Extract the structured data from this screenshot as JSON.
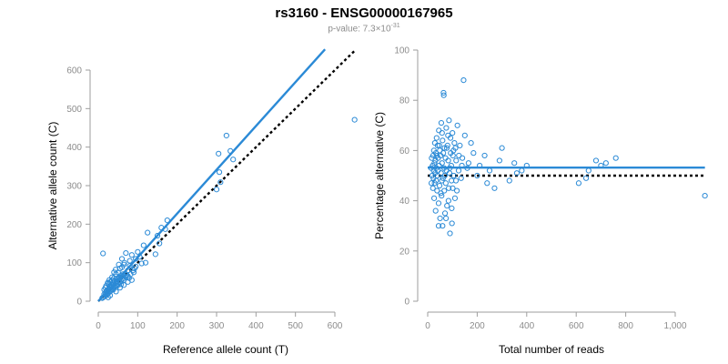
{
  "header": {
    "title": "rs3160 - ENSG00000167965",
    "pvalue_prefix": "p-value: 7.3×10",
    "pvalue_exponent": "-31"
  },
  "colors": {
    "points": "#2b8ad6",
    "fit": "#2b8ad6",
    "reference": "#000000"
  },
  "chart_data": [
    {
      "type": "scatter",
      "name": "allele-counts",
      "xlabel": "Reference allele count (T)",
      "ylabel": "Alternative allele count (C)",
      "xlim": [
        0,
        650
      ],
      "ylim": [
        0,
        650
      ],
      "xticks": [
        0,
        100,
        200,
        300,
        400,
        500,
        600
      ],
      "xtick_labels": [
        "0",
        "100",
        "200",
        "300",
        "400",
        "500",
        "600"
      ],
      "yticks": [
        0,
        100,
        200,
        300,
        400,
        500,
        600
      ],
      "ytick_labels": [
        "0",
        "100",
        "200",
        "300",
        "400",
        "500",
        "600"
      ],
      "fit_line": {
        "x": [
          0,
          575
        ],
        "y": [
          0,
          654
        ]
      },
      "reference_line": {
        "x": [
          0,
          650
        ],
        "y": [
          0,
          650
        ]
      },
      "points": [
        [
          650,
          471
        ],
        [
          325,
          430
        ],
        [
          335,
          390
        ],
        [
          305,
          383
        ],
        [
          342,
          368
        ],
        [
          307,
          335
        ],
        [
          310,
          309
        ],
        [
          300,
          290
        ],
        [
          175,
          210
        ],
        [
          160,
          191
        ],
        [
          170,
          187
        ],
        [
          125,
          178
        ],
        [
          150,
          170
        ],
        [
          155,
          150
        ],
        [
          115,
          145
        ],
        [
          145,
          122
        ],
        [
          100,
          128
        ],
        [
          120,
          100
        ],
        [
          105,
          115
        ],
        [
          95,
          110
        ],
        [
          80,
          92
        ],
        [
          85,
          120
        ],
        [
          70,
          125
        ],
        [
          60,
          110
        ],
        [
          90,
          75
        ],
        [
          75,
          80
        ],
        [
          65,
          95
        ],
        [
          55,
          85
        ],
        [
          50,
          75
        ],
        [
          45,
          70
        ],
        [
          40,
          60
        ],
        [
          35,
          55
        ],
        [
          30,
          50
        ],
        [
          25,
          45
        ],
        [
          20,
          40
        ],
        [
          15,
          30
        ],
        [
          12,
          124
        ],
        [
          18,
          35
        ],
        [
          22,
          28
        ],
        [
          28,
          38
        ],
        [
          33,
          42
        ],
        [
          38,
          48
        ],
        [
          42,
          52
        ],
        [
          48,
          58
        ],
        [
          52,
          62
        ],
        [
          58,
          66
        ],
        [
          62,
          70
        ],
        [
          68,
          72
        ],
        [
          72,
          68
        ],
        [
          78,
          60
        ],
        [
          82,
          70
        ],
        [
          88,
          80
        ],
        [
          92,
          85
        ],
        [
          55,
          50
        ],
        [
          50,
          45
        ],
        [
          45,
          40
        ],
        [
          40,
          35
        ],
        [
          35,
          30
        ],
        [
          30,
          25
        ],
        [
          25,
          20
        ],
        [
          20,
          15
        ],
        [
          15,
          12
        ],
        [
          12,
          10
        ],
        [
          10,
          8
        ],
        [
          18,
          22
        ],
        [
          22,
          18
        ],
        [
          28,
          32
        ],
        [
          32,
          28
        ],
        [
          38,
          30
        ],
        [
          42,
          38
        ],
        [
          48,
          40
        ],
        [
          52,
          48
        ],
        [
          58,
          52
        ],
        [
          62,
          58
        ],
        [
          65,
          55
        ],
        [
          70,
          62
        ],
        [
          75,
          65
        ],
        [
          35,
          62
        ],
        [
          28,
          55
        ],
        [
          24,
          48
        ],
        [
          40,
          75
        ],
        [
          44,
          82
        ],
        [
          60,
          88
        ],
        [
          52,
          95
        ],
        [
          66,
          100
        ],
        [
          80,
          105
        ],
        [
          95,
          90
        ],
        [
          110,
          98
        ],
        [
          25,
          10
        ],
        [
          30,
          15
        ],
        [
          45,
          25
        ],
        [
          55,
          35
        ],
        [
          65,
          42
        ],
        [
          75,
          50
        ],
        [
          85,
          55
        ],
        [
          15,
          18
        ],
        [
          20,
          25
        ],
        [
          26,
          30
        ],
        [
          34,
          36
        ],
        [
          46,
          52
        ],
        [
          54,
          60
        ],
        [
          64,
          66
        ],
        [
          38,
          44
        ],
        [
          32,
          38
        ],
        [
          58,
          44
        ]
      ]
    },
    {
      "type": "scatter",
      "name": "percentage-alternative",
      "xlabel": "Total number of reads",
      "ylabel": "Percentage alternative (C)",
      "xlim": [
        0,
        1120
      ],
      "ylim": [
        0,
        100
      ],
      "xticks": [
        0,
        200,
        400,
        600,
        800,
        1000
      ],
      "xtick_labels": [
        "0",
        "200",
        "400",
        "600",
        "800",
        "1,000"
      ],
      "yticks": [
        0,
        20,
        40,
        60,
        80,
        100
      ],
      "ytick_labels": [
        "0",
        "20",
        "40",
        "60",
        "80",
        "100"
      ],
      "fit_line": {
        "x": [
          0,
          1120
        ],
        "y": [
          53.2,
          53.2
        ]
      },
      "reference_line": {
        "x": [
          0,
          1120
        ],
        "y": [
          50,
          50
        ]
      },
      "points": [
        [
          1120,
          42
        ],
        [
          760,
          57
        ],
        [
          720,
          55
        ],
        [
          700,
          54
        ],
        [
          680,
          56
        ],
        [
          650,
          52
        ],
        [
          640,
          49
        ],
        [
          610,
          47
        ],
        [
          400,
          54
        ],
        [
          380,
          52
        ],
        [
          360,
          51
        ],
        [
          350,
          55
        ],
        [
          330,
          48
        ],
        [
          300,
          61
        ],
        [
          290,
          56
        ],
        [
          270,
          45
        ],
        [
          250,
          52
        ],
        [
          240,
          47
        ],
        [
          230,
          58
        ],
        [
          210,
          54
        ],
        [
          200,
          50
        ],
        [
          185,
          59
        ],
        [
          175,
          63
        ],
        [
          165,
          55
        ],
        [
          160,
          53
        ],
        [
          150,
          66
        ],
        [
          145,
          88
        ],
        [
          140,
          57
        ],
        [
          135,
          49
        ],
        [
          130,
          62
        ],
        [
          125,
          52
        ],
        [
          120,
          70
        ],
        [
          118,
          44
        ],
        [
          115,
          56
        ],
        [
          112,
          61
        ],
        [
          110,
          41
        ],
        [
          108,
          63
        ],
        [
          105,
          50
        ],
        [
          102,
          58
        ],
        [
          100,
          67
        ],
        [
          98,
          31
        ],
        [
          96,
          48
        ],
        [
          95,
          54
        ],
        [
          93,
          59
        ],
        [
          90,
          27
        ],
        [
          88,
          51
        ],
        [
          86,
          72
        ],
        [
          85,
          45
        ],
        [
          83,
          56
        ],
        [
          80,
          62
        ],
        [
          78,
          38
        ],
        [
          76,
          52
        ],
        [
          75,
          69
        ],
        [
          73,
          47
        ],
        [
          72,
          57
        ],
        [
          70,
          35
        ],
        [
          68,
          61
        ],
        [
          66,
          53
        ],
        [
          65,
          82
        ],
        [
          64,
          83
        ],
        [
          62,
          49
        ],
        [
          60,
          64
        ],
        [
          58,
          55
        ],
        [
          56,
          42
        ],
        [
          55,
          71
        ],
        [
          54,
          51
        ],
        [
          52,
          58
        ],
        [
          50,
          33
        ],
        [
          49,
          60
        ],
        [
          48,
          46
        ],
        [
          46,
          54
        ],
        [
          45,
          68
        ],
        [
          44,
          39
        ],
        [
          42,
          57
        ],
        [
          40,
          62
        ],
        [
          39,
          50
        ],
        [
          38,
          44
        ],
        [
          36,
          65
        ],
        [
          35,
          53
        ],
        [
          34,
          48
        ],
        [
          33,
          59
        ],
        [
          32,
          36
        ],
        [
          31,
          56
        ],
        [
          30,
          51
        ],
        [
          29,
          63
        ],
        [
          28,
          47
        ],
        [
          27,
          55
        ],
        [
          26,
          41
        ],
        [
          25,
          60
        ],
        [
          24,
          52
        ],
        [
          23,
          49
        ],
        [
          22,
          58
        ],
        [
          21,
          45
        ],
        [
          20,
          54
        ],
        [
          18,
          50
        ],
        [
          16,
          57
        ],
        [
          15,
          47
        ],
        [
          14,
          53
        ],
        [
          92,
          65
        ],
        [
          104,
          60
        ],
        [
          114,
          48
        ],
        [
          126,
          58
        ],
        [
          138,
          54
        ],
        [
          60,
          30
        ],
        [
          74,
          33
        ],
        [
          84,
          40
        ],
        [
          58,
          67
        ],
        [
          44,
          30
        ],
        [
          67,
          44
        ],
        [
          82,
          66
        ],
        [
          97,
          37
        ],
        [
          53,
          43
        ],
        [
          41,
          52
        ],
        [
          37,
          58
        ],
        [
          63,
          59
        ],
        [
          77,
          61
        ],
        [
          89,
          53
        ],
        [
          101,
          45
        ],
        [
          47,
          62
        ],
        [
          57,
          48
        ],
        [
          69,
          50
        ]
      ]
    }
  ]
}
